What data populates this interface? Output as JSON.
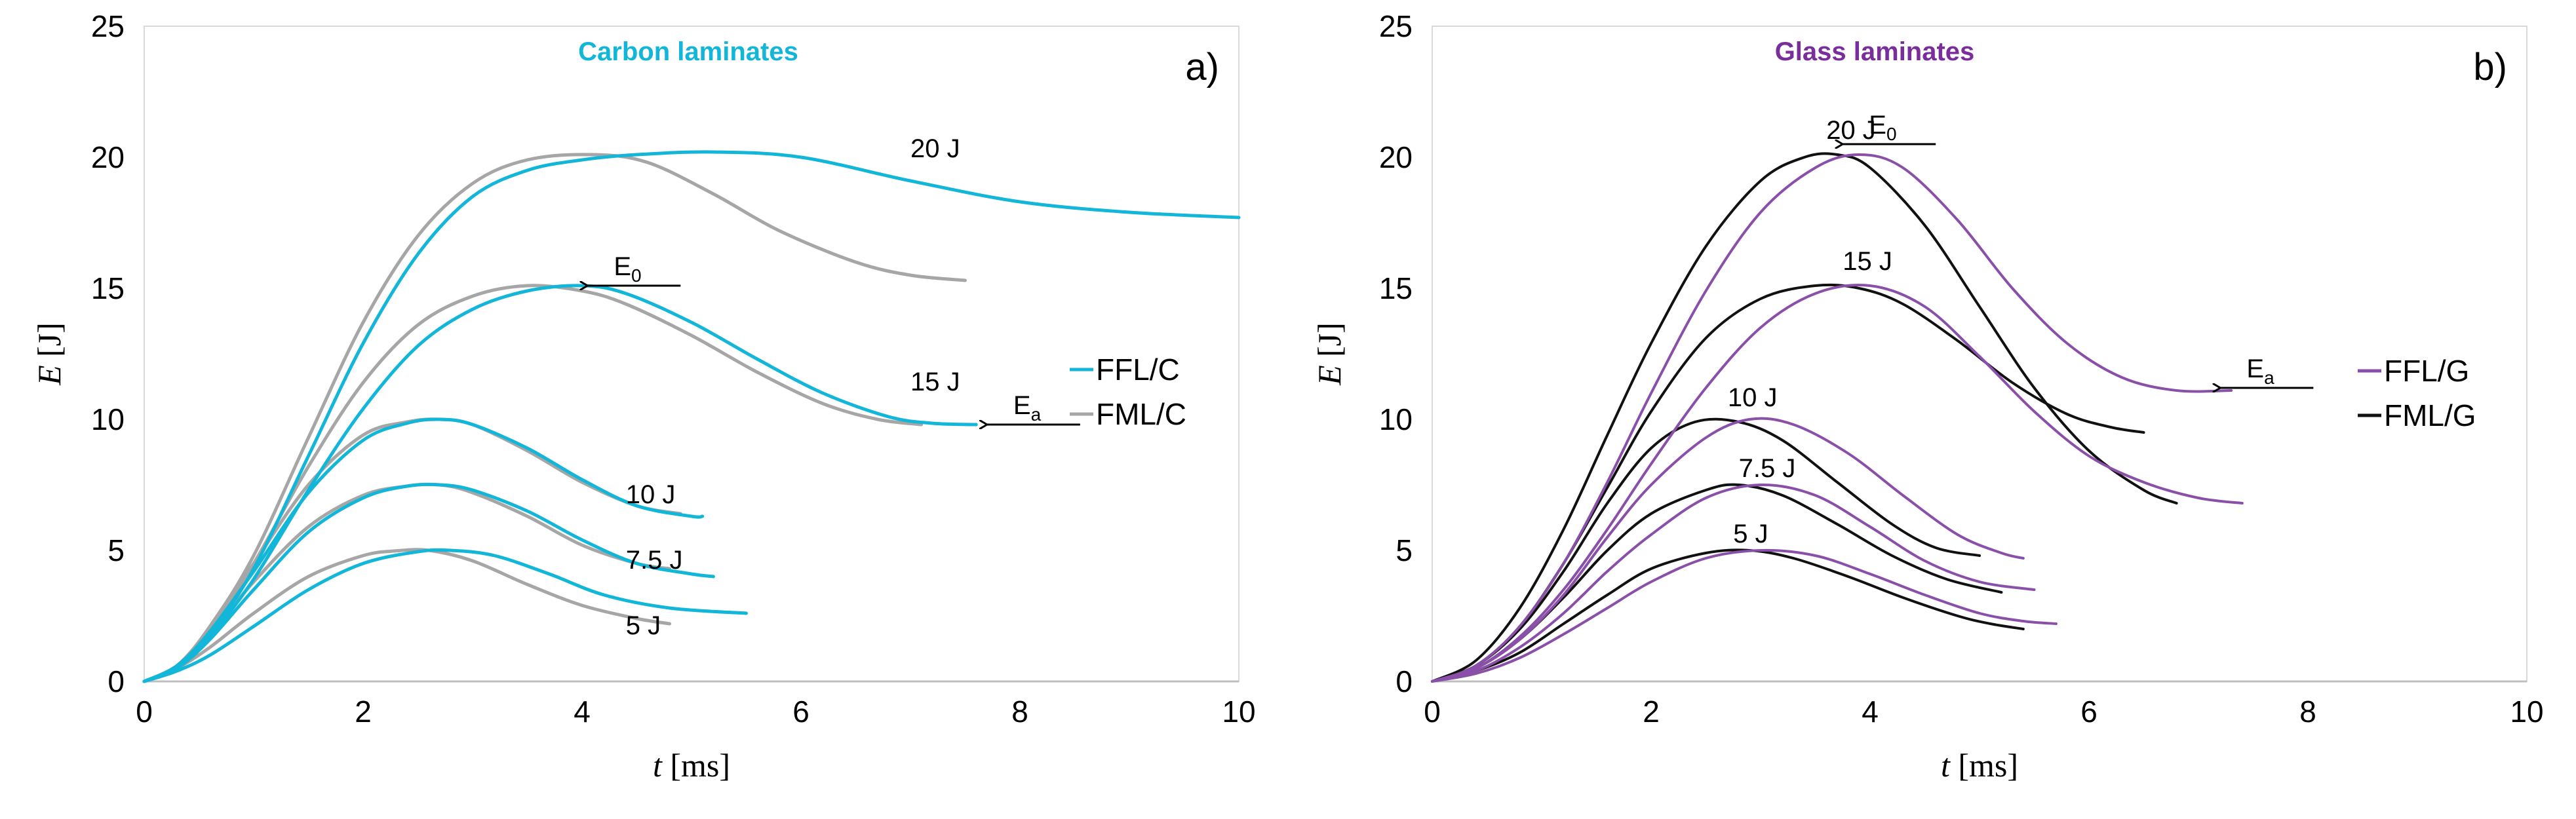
{
  "colors": {
    "ffl_c": "#12b6d8",
    "fml_c": "#a6a6a6",
    "ffl_g": "#8a4fa8",
    "fml_g": "#111111",
    "title_c": "#12b6d8",
    "title_g": "#7a2e9c"
  },
  "axis_titles": {
    "x_var": "t",
    "x_unit": "[ms]",
    "y_var": "E",
    "y_unit": "[J]"
  },
  "chart_data": [
    {
      "type": "line",
      "panel_label": "a)",
      "title": "Carbon laminates",
      "xlabel": "t [ms]",
      "ylabel": "E [J]",
      "xlim": [
        0,
        10
      ],
      "ylim": [
        0,
        25
      ],
      "xticks": [
        "0",
        "2",
        "4",
        "6",
        "8",
        "10"
      ],
      "yticks": [
        "0",
        "5",
        "10",
        "15",
        "20",
        "25"
      ],
      "legend_position": "right",
      "legend": [
        {
          "label": "FFL/C",
          "series": "FFL/C"
        },
        {
          "label": "FML/C",
          "series": "FML/C"
        }
      ],
      "series": [
        {
          "name": "FFL/C",
          "energy": "20 J",
          "x": [
            0,
            0.3,
            0.6,
            1.0,
            1.5,
            2.0,
            2.5,
            3.0,
            3.5,
            4.0,
            4.5,
            5.2,
            6.0,
            7.0,
            8.0,
            9.0,
            10.0
          ],
          "y": [
            0,
            0.5,
            1.8,
            4.3,
            8.6,
            12.9,
            16.3,
            18.5,
            19.5,
            19.9,
            20.1,
            20.2,
            20.0,
            19.1,
            18.3,
            17.9,
            17.7
          ]
        },
        {
          "name": "FML/C",
          "energy": "20 J",
          "x": [
            0,
            0.3,
            0.6,
            1.0,
            1.5,
            2.0,
            2.5,
            3.0,
            3.5,
            4.1,
            4.6,
            5.2,
            5.8,
            6.5,
            7.0,
            7.5
          ],
          "y": [
            0,
            0.6,
            2.1,
            4.8,
            9.3,
            13.7,
            17.0,
            19.0,
            19.9,
            20.1,
            19.8,
            18.6,
            17.2,
            16.0,
            15.5,
            15.3
          ]
        },
        {
          "name": "FFL/C",
          "energy": "15 J",
          "x": [
            0,
            0.3,
            0.6,
            1.0,
            1.5,
            2.0,
            2.5,
            3.0,
            3.5,
            4.0,
            4.4,
            5.0,
            5.6,
            6.2,
            6.8,
            7.2,
            7.6
          ],
          "y": [
            0,
            0.5,
            1.7,
            3.9,
            7.3,
            10.4,
            12.8,
            14.2,
            14.9,
            15.1,
            14.8,
            13.7,
            12.3,
            11.0,
            10.1,
            9.85,
            9.8
          ]
        },
        {
          "name": "FML/C",
          "energy": "15 J",
          "x": [
            0,
            0.3,
            0.6,
            1.0,
            1.5,
            2.0,
            2.5,
            3.0,
            3.5,
            4.0,
            4.4,
            5.0,
            5.6,
            6.2,
            6.7,
            7.1
          ],
          "y": [
            0,
            0.6,
            2.0,
            4.5,
            8.2,
            11.4,
            13.6,
            14.7,
            15.1,
            14.9,
            14.4,
            13.2,
            11.8,
            10.6,
            10.0,
            9.8
          ]
        },
        {
          "name": "FFL/C",
          "energy": "10 J",
          "x": [
            0,
            0.3,
            0.6,
            1.0,
            1.5,
            2.0,
            2.4,
            2.7,
            3.0,
            3.5,
            4.0,
            4.5,
            5.0,
            5.1
          ],
          "y": [
            0,
            0.6,
            1.9,
            4.2,
            7.2,
            9.2,
            9.85,
            10.0,
            9.8,
            8.9,
            7.7,
            6.7,
            6.3,
            6.3
          ]
        },
        {
          "name": "FML/C",
          "energy": "10 J",
          "x": [
            0,
            0.3,
            0.6,
            1.0,
            1.5,
            2.0,
            2.4,
            2.7,
            3.0,
            3.5,
            4.0,
            4.5,
            4.9
          ],
          "y": [
            0,
            0.6,
            2.0,
            4.5,
            7.5,
            9.4,
            9.9,
            10.0,
            9.8,
            8.8,
            7.6,
            6.7,
            6.4
          ]
        },
        {
          "name": "FFL/C",
          "energy": "7.5 J",
          "x": [
            0,
            0.3,
            0.6,
            1.0,
            1.5,
            2.0,
            2.4,
            2.7,
            3.0,
            3.5,
            4.0,
            4.5,
            5.0,
            5.2
          ],
          "y": [
            0,
            0.5,
            1.6,
            3.5,
            5.7,
            7.0,
            7.45,
            7.5,
            7.3,
            6.5,
            5.4,
            4.5,
            4.1,
            4.0
          ]
        },
        {
          "name": "FML/C",
          "energy": "7.5 J",
          "x": [
            0,
            0.3,
            0.6,
            1.0,
            1.5,
            2.0,
            2.4,
            2.7,
            3.0,
            3.5,
            4.0,
            4.5,
            4.8
          ],
          "y": [
            0,
            0.6,
            1.8,
            3.8,
            5.9,
            7.1,
            7.45,
            7.5,
            7.2,
            6.3,
            5.2,
            4.5,
            4.3
          ]
        },
        {
          "name": "FFL/C",
          "energy": "5 J",
          "x": [
            0,
            0.3,
            0.6,
            1.0,
            1.5,
            2.0,
            2.5,
            2.8,
            3.2,
            3.7,
            4.2,
            4.8,
            5.5
          ],
          "y": [
            0,
            0.4,
            1.0,
            2.1,
            3.5,
            4.5,
            4.95,
            5.0,
            4.8,
            4.1,
            3.3,
            2.8,
            2.6
          ]
        },
        {
          "name": "FML/C",
          "energy": "5 J",
          "x": [
            0,
            0.3,
            0.6,
            1.0,
            1.5,
            2.0,
            2.3,
            2.6,
            3.0,
            3.5,
            4.0,
            4.5,
            4.8
          ],
          "y": [
            0,
            0.5,
            1.3,
            2.6,
            4.0,
            4.8,
            4.98,
            5.0,
            4.6,
            3.7,
            2.9,
            2.4,
            2.2
          ]
        }
      ],
      "annotations": [
        {
          "text": "20 J",
          "x": 7.0,
          "y": 20.0
        },
        {
          "text": "15 J",
          "x": 7.0,
          "y": 11.1
        },
        {
          "text": "10  J",
          "x": 4.4,
          "y": 6.8
        },
        {
          "text": "7.5 J",
          "x": 4.4,
          "y": 4.3
        },
        {
          "text": "5 J",
          "x": 4.4,
          "y": 1.8
        }
      ],
      "markers": [
        {
          "label": "E",
          "sub": "0",
          "tip_x": 4.05,
          "tip_y": 15.1,
          "tail_x": 4.9
        },
        {
          "label": "E",
          "sub": "a",
          "tip_x": 7.7,
          "tip_y": 9.8,
          "tail_x": 8.55
        }
      ]
    },
    {
      "type": "line",
      "panel_label": "b)",
      "title": "Glass laminates",
      "xlabel": "t [ms]",
      "ylabel": "E [J]",
      "xlim": [
        0,
        10
      ],
      "ylim": [
        0,
        25
      ],
      "xticks": [
        "0",
        "2",
        "4",
        "6",
        "8",
        "10"
      ],
      "yticks": [
        "0",
        "5",
        "10",
        "15",
        "20",
        "25"
      ],
      "legend_position": "right",
      "legend": [
        {
          "label": "FFL/G",
          "series": "FFL/G"
        },
        {
          "label": "FML/G",
          "series": "FML/G"
        }
      ],
      "series": [
        {
          "name": "FFL/G",
          "energy": "20 J",
          "x": [
            0,
            0.4,
            0.8,
            1.2,
            1.6,
            2.0,
            2.5,
            3.0,
            3.5,
            3.9,
            4.3,
            4.8,
            5.3,
            5.8,
            6.3,
            6.8,
            7.3
          ],
          "y": [
            0,
            0.6,
            2.1,
            4.5,
            7.6,
            11.0,
            14.9,
            17.9,
            19.6,
            20.1,
            19.6,
            17.6,
            15.0,
            12.9,
            11.6,
            11.1,
            11.1
          ]
        },
        {
          "name": "FML/G",
          "energy": "20 J",
          "x": [
            0,
            0.4,
            0.8,
            1.2,
            1.6,
            2.0,
            2.5,
            3.0,
            3.4,
            3.7,
            4.0,
            4.5,
            5.0,
            5.5,
            6.0,
            6.5,
            6.8
          ],
          "y": [
            0,
            0.8,
            2.8,
            5.8,
            9.4,
            12.9,
            16.6,
            19.1,
            20.0,
            20.1,
            19.6,
            17.4,
            14.3,
            11.2,
            8.8,
            7.3,
            6.8
          ]
        },
        {
          "name": "FFL/G",
          "energy": "15 J",
          "x": [
            0,
            0.4,
            0.8,
            1.2,
            1.6,
            2.0,
            2.5,
            3.0,
            3.5,
            4.0,
            4.5,
            5.0,
            5.5,
            6.0,
            6.5,
            7.0,
            7.4
          ],
          "y": [
            0,
            0.5,
            1.7,
            3.5,
            5.8,
            8.3,
            11.2,
            13.5,
            14.8,
            15.1,
            14.3,
            12.4,
            10.3,
            8.6,
            7.6,
            7.0,
            6.8
          ]
        },
        {
          "name": "FML/G",
          "energy": "15 J",
          "x": [
            0,
            0.4,
            0.8,
            1.2,
            1.6,
            2.0,
            2.5,
            3.0,
            3.5,
            3.9,
            4.3,
            4.8,
            5.3,
            5.8,
            6.2,
            6.5
          ],
          "y": [
            0,
            0.6,
            2.1,
            4.5,
            7.4,
            10.3,
            13.1,
            14.6,
            15.1,
            15.0,
            14.4,
            13.0,
            11.4,
            10.2,
            9.7,
            9.5
          ]
        },
        {
          "name": "FFL/G",
          "energy": "10 J",
          "x": [
            0,
            0.4,
            0.8,
            1.2,
            1.6,
            2.0,
            2.5,
            2.9,
            3.3,
            3.8,
            4.3,
            4.8,
            5.2,
            5.4
          ],
          "y": [
            0,
            0.5,
            1.6,
            3.3,
            5.5,
            7.5,
            9.3,
            10.0,
            9.8,
            8.7,
            7.1,
            5.6,
            4.9,
            4.7
          ]
        },
        {
          "name": "FML/G",
          "energy": "10 J",
          "x": [
            0,
            0.4,
            0.8,
            1.2,
            1.6,
            2.0,
            2.4,
            2.8,
            3.2,
            3.7,
            4.2,
            4.6,
            5.0
          ],
          "y": [
            0,
            0.6,
            2.0,
            4.2,
            6.8,
            8.9,
            9.9,
            9.9,
            9.2,
            7.6,
            6.0,
            5.1,
            4.8
          ]
        },
        {
          "name": "FFL/G",
          "energy": "7.5 J",
          "x": [
            0,
            0.4,
            0.8,
            1.2,
            1.6,
            2.0,
            2.5,
            3.0,
            3.5,
            4.0,
            4.5,
            5.0,
            5.5
          ],
          "y": [
            0,
            0.4,
            1.3,
            2.6,
            4.2,
            5.6,
            7.0,
            7.5,
            7.1,
            5.9,
            4.6,
            3.8,
            3.5
          ]
        },
        {
          "name": "FML/G",
          "energy": "7.5 J",
          "x": [
            0,
            0.4,
            0.8,
            1.2,
            1.6,
            2.0,
            2.5,
            2.8,
            3.2,
            3.7,
            4.2,
            4.7,
            5.2
          ],
          "y": [
            0,
            0.5,
            1.6,
            3.2,
            5.0,
            6.4,
            7.3,
            7.5,
            7.1,
            6.0,
            4.8,
            3.9,
            3.4
          ]
        },
        {
          "name": "FFL/G",
          "energy": "5 J",
          "x": [
            0,
            0.4,
            0.8,
            1.2,
            1.6,
            2.0,
            2.5,
            3.0,
            3.5,
            4.0,
            4.5,
            5.0,
            5.4,
            5.7
          ],
          "y": [
            0,
            0.3,
            0.9,
            1.8,
            2.8,
            3.8,
            4.7,
            5.0,
            4.8,
            4.1,
            3.3,
            2.6,
            2.3,
            2.2
          ]
        },
        {
          "name": "FML/G",
          "energy": "5 J",
          "x": [
            0,
            0.4,
            0.8,
            1.2,
            1.6,
            2.0,
            2.5,
            2.9,
            3.3,
            3.8,
            4.3,
            4.8,
            5.1,
            5.4
          ],
          "y": [
            0,
            0.4,
            1.1,
            2.2,
            3.3,
            4.3,
            4.9,
            5.0,
            4.7,
            4.0,
            3.2,
            2.5,
            2.2,
            2.0
          ]
        }
      ],
      "annotations": [
        {
          "text": "20 J",
          "x": 3.6,
          "y": 20.7
        },
        {
          "text": "15 J",
          "x": 3.75,
          "y": 15.7
        },
        {
          "text": "10 J",
          "x": 2.7,
          "y": 10.5
        },
        {
          "text": "7.5 J",
          "x": 2.8,
          "y": 7.8
        },
        {
          "text": "5 J",
          "x": 2.75,
          "y": 5.3
        }
      ],
      "markers": [
        {
          "label": "E",
          "sub": "0",
          "tip_x": 3.75,
          "tip_y": 20.5,
          "tail_x": 4.6
        },
        {
          "label": "E",
          "sub": "a",
          "tip_x": 7.2,
          "tip_y": 11.2,
          "tail_x": 8.05
        }
      ]
    }
  ]
}
